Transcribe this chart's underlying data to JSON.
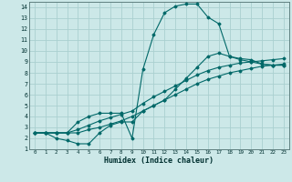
{
  "xlabel": "Humidex (Indice chaleur)",
  "xlim": [
    -0.5,
    23.5
  ],
  "ylim": [
    1,
    14.5
  ],
  "xticks": [
    0,
    1,
    2,
    3,
    4,
    5,
    6,
    7,
    8,
    9,
    10,
    11,
    12,
    13,
    14,
    15,
    16,
    17,
    18,
    19,
    20,
    21,
    22,
    23
  ],
  "yticks": [
    1,
    2,
    3,
    4,
    5,
    6,
    7,
    8,
    9,
    10,
    11,
    12,
    13,
    14
  ],
  "bg_color": "#cce8e8",
  "grid_color": "#aad0d0",
  "line_color": "#006868",
  "curves": [
    {
      "x": [
        0,
        1,
        2,
        3,
        4,
        5,
        6,
        7,
        8,
        9,
        10,
        11,
        12,
        13,
        14,
        15,
        16,
        17,
        18,
        19,
        20,
        21,
        22,
        23
      ],
      "y": [
        2.5,
        2.5,
        2.5,
        2.5,
        2.5,
        2.8,
        3.0,
        3.3,
        3.6,
        4.0,
        4.5,
        5.0,
        5.5,
        6.0,
        6.5,
        7.0,
        7.4,
        7.7,
        8.0,
        8.2,
        8.4,
        8.6,
        8.7,
        8.8
      ]
    },
    {
      "x": [
        0,
        1,
        2,
        3,
        4,
        5,
        6,
        7,
        8,
        9,
        10,
        11,
        12,
        13,
        14,
        15,
        16,
        17,
        18,
        19,
        20,
        21,
        22,
        23
      ],
      "y": [
        2.5,
        2.5,
        2.5,
        2.5,
        2.8,
        3.2,
        3.6,
        3.9,
        4.2,
        4.5,
        5.2,
        5.8,
        6.3,
        6.8,
        7.3,
        7.8,
        8.2,
        8.5,
        8.7,
        8.9,
        9.0,
        9.1,
        9.2,
        9.3
      ]
    },
    {
      "x": [
        0,
        1,
        2,
        3,
        4,
        5,
        6,
        7,
        8,
        9,
        10,
        11,
        12,
        13,
        14,
        15,
        16,
        17,
        18,
        19,
        20,
        21,
        22,
        23
      ],
      "y": [
        2.5,
        2.5,
        2.5,
        2.5,
        3.5,
        4.0,
        4.3,
        4.3,
        4.3,
        2.0,
        8.3,
        11.5,
        13.5,
        14.1,
        14.3,
        14.3,
        13.1,
        12.5,
        9.5,
        9.3,
        9.2,
        8.8,
        8.7,
        8.7
      ]
    },
    {
      "x": [
        0,
        1,
        2,
        3,
        4,
        5,
        6,
        7,
        8,
        9,
        10,
        11,
        12,
        13,
        14,
        15,
        16,
        17,
        18,
        19,
        20,
        21,
        22,
        23
      ],
      "y": [
        2.5,
        2.5,
        2.0,
        1.8,
        1.5,
        1.5,
        2.5,
        3.2,
        3.5,
        3.5,
        4.5,
        5.0,
        5.5,
        6.5,
        7.5,
        8.5,
        9.5,
        9.8,
        9.5,
        9.2,
        9.0,
        8.8,
        8.7,
        8.7
      ]
    }
  ]
}
